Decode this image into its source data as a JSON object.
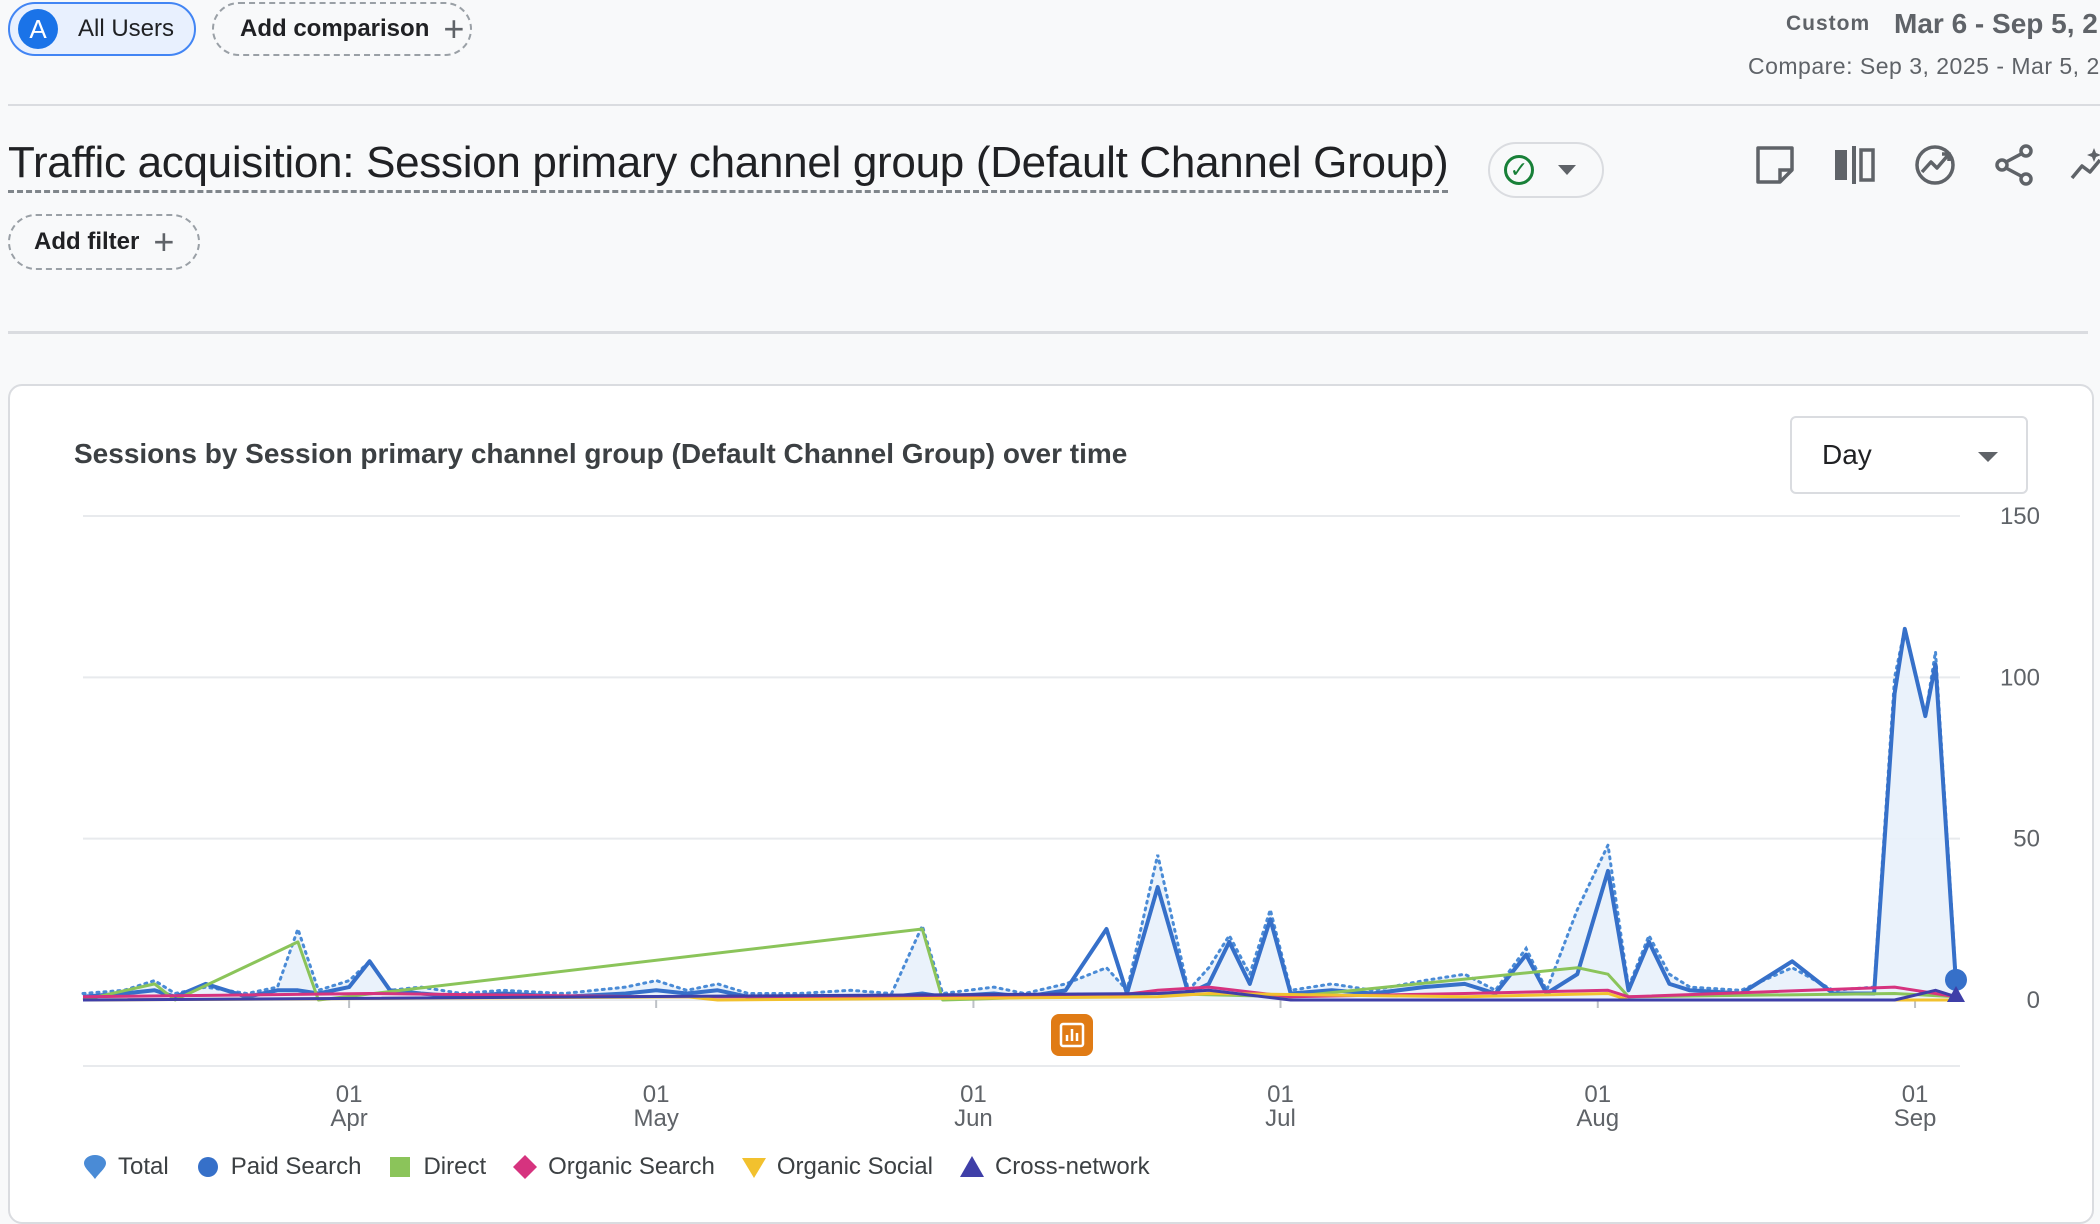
{
  "header": {
    "user_segment": "All Users",
    "avatar_letter": "A",
    "add_comparison": "Add comparison",
    "date_preset": "Custom",
    "date_range": "Mar 6 - Sep 5, 2",
    "compare_range": "Compare: Sep 3, 2025 - Mar 5, 2"
  },
  "report": {
    "title": "Traffic acquisition: Session primary channel group (Default Channel Group)",
    "add_filter": "Add filter"
  },
  "card": {
    "granularity": "Day"
  },
  "colors": {
    "total": "#4a8bd6",
    "paid_search": "#3670c9",
    "direct": "#8bc45a",
    "organic_search": "#d6337f",
    "organic_social": "#f2c12e",
    "cross_network": "#3f3fa8",
    "annotation": "#e07b15"
  },
  "chart_data": {
    "type": "line",
    "title": "Sessions by Session primary channel group (Default Channel Group) over time",
    "xlabel": "",
    "ylabel": "",
    "x_range": [
      "2025-03-06",
      "2025-09-05"
    ],
    "ylim": [
      0,
      150
    ],
    "y_ticks": [
      "150",
      "100",
      "50",
      "0"
    ],
    "x_ticks": [
      {
        "date": "2025-04-01",
        "day": "01",
        "month": "Apr"
      },
      {
        "date": "2025-05-01",
        "day": "01",
        "month": "May"
      },
      {
        "date": "2025-06-01",
        "day": "01",
        "month": "Jun"
      },
      {
        "date": "2025-07-01",
        "day": "01",
        "month": "Jul"
      },
      {
        "date": "2025-08-01",
        "day": "01",
        "month": "Aug"
      },
      {
        "date": "2025-09-01",
        "day": "01",
        "month": "Sep"
      }
    ],
    "legend_position": "bottom-left",
    "series": [
      {
        "name": "Total",
        "points": [
          [
            "2025-03-06",
            2
          ],
          [
            "2025-03-10",
            3
          ],
          [
            "2025-03-13",
            6
          ],
          [
            "2025-03-15",
            2
          ],
          [
            "2025-03-18",
            4
          ],
          [
            "2025-03-22",
            2
          ],
          [
            "2025-03-25",
            4
          ],
          [
            "2025-03-27",
            22
          ],
          [
            "2025-03-29",
            3
          ],
          [
            "2025-04-01",
            6
          ],
          [
            "2025-04-03",
            12
          ],
          [
            "2025-04-05",
            3
          ],
          [
            "2025-04-08",
            4
          ],
          [
            "2025-04-12",
            2
          ],
          [
            "2025-04-16",
            3
          ],
          [
            "2025-04-22",
            2
          ],
          [
            "2025-04-28",
            4
          ],
          [
            "2025-05-01",
            6
          ],
          [
            "2025-05-04",
            3
          ],
          [
            "2025-05-07",
            5
          ],
          [
            "2025-05-10",
            2
          ],
          [
            "2025-05-15",
            2
          ],
          [
            "2025-05-20",
            3
          ],
          [
            "2025-05-24",
            2
          ],
          [
            "2025-05-27",
            23
          ],
          [
            "2025-05-29",
            2
          ],
          [
            "2025-06-03",
            4
          ],
          [
            "2025-06-06",
            2
          ],
          [
            "2025-06-10",
            5
          ],
          [
            "2025-06-14",
            10
          ],
          [
            "2025-06-16",
            3
          ],
          [
            "2025-06-19",
            45
          ],
          [
            "2025-06-22",
            3
          ],
          [
            "2025-06-24",
            10
          ],
          [
            "2025-06-26",
            20
          ],
          [
            "2025-06-28",
            8
          ],
          [
            "2025-06-30",
            28
          ],
          [
            "2025-07-02",
            3
          ],
          [
            "2025-07-06",
            5
          ],
          [
            "2025-07-10",
            3
          ],
          [
            "2025-07-15",
            6
          ],
          [
            "2025-07-19",
            8
          ],
          [
            "2025-07-22",
            3
          ],
          [
            "2025-07-25",
            16
          ],
          [
            "2025-07-27",
            3
          ],
          [
            "2025-07-30",
            28
          ],
          [
            "2025-08-02",
            48
          ],
          [
            "2025-08-04",
            4
          ],
          [
            "2025-08-06",
            20
          ],
          [
            "2025-08-08",
            8
          ],
          [
            "2025-08-10",
            4
          ],
          [
            "2025-08-15",
            3
          ],
          [
            "2025-08-20",
            10
          ],
          [
            "2025-08-24",
            3
          ],
          [
            "2025-08-28",
            4
          ],
          [
            "2025-08-30",
            100
          ],
          [
            "2025-08-31",
            115
          ],
          [
            "2025-09-02",
            88
          ],
          [
            "2025-09-03",
            108
          ],
          [
            "2025-09-05",
            7
          ]
        ]
      },
      {
        "name": "Paid Search",
        "points": [
          [
            "2025-03-06",
            1
          ],
          [
            "2025-03-10",
            2
          ],
          [
            "2025-03-13",
            3
          ],
          [
            "2025-03-15",
            1
          ],
          [
            "2025-03-18",
            5
          ],
          [
            "2025-03-22",
            1
          ],
          [
            "2025-03-25",
            3
          ],
          [
            "2025-03-27",
            3
          ],
          [
            "2025-03-29",
            2
          ],
          [
            "2025-04-01",
            4
          ],
          [
            "2025-04-03",
            12
          ],
          [
            "2025-04-05",
            3
          ],
          [
            "2025-04-08",
            2
          ],
          [
            "2025-04-12",
            1
          ],
          [
            "2025-04-16",
            2
          ],
          [
            "2025-04-22",
            1
          ],
          [
            "2025-04-28",
            2
          ],
          [
            "2025-05-01",
            3
          ],
          [
            "2025-05-04",
            2
          ],
          [
            "2025-05-07",
            3
          ],
          [
            "2025-05-10",
            1
          ],
          [
            "2025-05-15",
            1
          ],
          [
            "2025-05-20",
            1
          ],
          [
            "2025-05-24",
            1
          ],
          [
            "2025-05-27",
            2
          ],
          [
            "2025-05-29",
            1
          ],
          [
            "2025-06-03",
            2
          ],
          [
            "2025-06-06",
            1
          ],
          [
            "2025-06-10",
            3
          ],
          [
            "2025-06-14",
            22
          ],
          [
            "2025-06-16",
            2
          ],
          [
            "2025-06-19",
            35
          ],
          [
            "2025-06-22",
            2
          ],
          [
            "2025-06-24",
            5
          ],
          [
            "2025-06-26",
            18
          ],
          [
            "2025-06-28",
            5
          ],
          [
            "2025-06-30",
            25
          ],
          [
            "2025-07-02",
            2
          ],
          [
            "2025-07-06",
            3
          ],
          [
            "2025-07-10",
            2
          ],
          [
            "2025-07-15",
            4
          ],
          [
            "2025-07-19",
            5
          ],
          [
            "2025-07-22",
            2
          ],
          [
            "2025-07-25",
            14
          ],
          [
            "2025-07-27",
            2
          ],
          [
            "2025-07-30",
            8
          ],
          [
            "2025-08-02",
            40
          ],
          [
            "2025-08-04",
            3
          ],
          [
            "2025-08-06",
            18
          ],
          [
            "2025-08-08",
            5
          ],
          [
            "2025-08-10",
            3
          ],
          [
            "2025-08-15",
            2
          ],
          [
            "2025-08-20",
            12
          ],
          [
            "2025-08-24",
            2
          ],
          [
            "2025-08-28",
            2
          ],
          [
            "2025-08-30",
            95
          ],
          [
            "2025-08-31",
            115
          ],
          [
            "2025-09-02",
            88
          ],
          [
            "2025-09-03",
            104
          ],
          [
            "2025-09-05",
            5
          ]
        ]
      },
      {
        "name": "Direct",
        "points": [
          [
            "2025-03-06",
            0
          ],
          [
            "2025-03-13",
            5
          ],
          [
            "2025-03-15",
            0
          ],
          [
            "2025-03-27",
            18
          ],
          [
            "2025-03-29",
            0
          ],
          [
            "2025-05-27",
            22
          ],
          [
            "2025-05-29",
            0
          ],
          [
            "2025-06-19",
            2
          ],
          [
            "2025-07-02",
            1
          ],
          [
            "2025-07-30",
            10
          ],
          [
            "2025-08-02",
            8
          ],
          [
            "2025-08-04",
            1
          ],
          [
            "2025-08-30",
            2
          ],
          [
            "2025-09-05",
            1
          ]
        ]
      },
      {
        "name": "Organic Search",
        "points": [
          [
            "2025-03-06",
            1
          ],
          [
            "2025-04-03",
            2
          ],
          [
            "2025-05-01",
            1
          ],
          [
            "2025-06-14",
            1
          ],
          [
            "2025-06-19",
            3
          ],
          [
            "2025-06-24",
            4
          ],
          [
            "2025-07-02",
            1
          ],
          [
            "2025-07-19",
            2
          ],
          [
            "2025-08-02",
            3
          ],
          [
            "2025-08-04",
            1
          ],
          [
            "2025-08-30",
            4
          ],
          [
            "2025-09-03",
            2
          ],
          [
            "2025-09-05",
            1
          ]
        ]
      },
      {
        "name": "Organic Social",
        "points": [
          [
            "2025-03-06",
            0
          ],
          [
            "2025-05-04",
            1
          ],
          [
            "2025-05-07",
            0
          ],
          [
            "2025-06-19",
            1
          ],
          [
            "2025-06-24",
            2
          ],
          [
            "2025-07-19",
            1
          ],
          [
            "2025-08-02",
            2
          ],
          [
            "2025-08-04",
            0
          ],
          [
            "2025-09-05",
            0
          ]
        ]
      },
      {
        "name": "Cross-network",
        "points": [
          [
            "2025-03-06",
            0
          ],
          [
            "2025-06-19",
            2
          ],
          [
            "2025-06-24",
            3
          ],
          [
            "2025-07-02",
            0
          ],
          [
            "2025-08-30",
            0
          ],
          [
            "2025-09-03",
            3
          ],
          [
            "2025-09-05",
            1
          ]
        ]
      }
    ]
  }
}
